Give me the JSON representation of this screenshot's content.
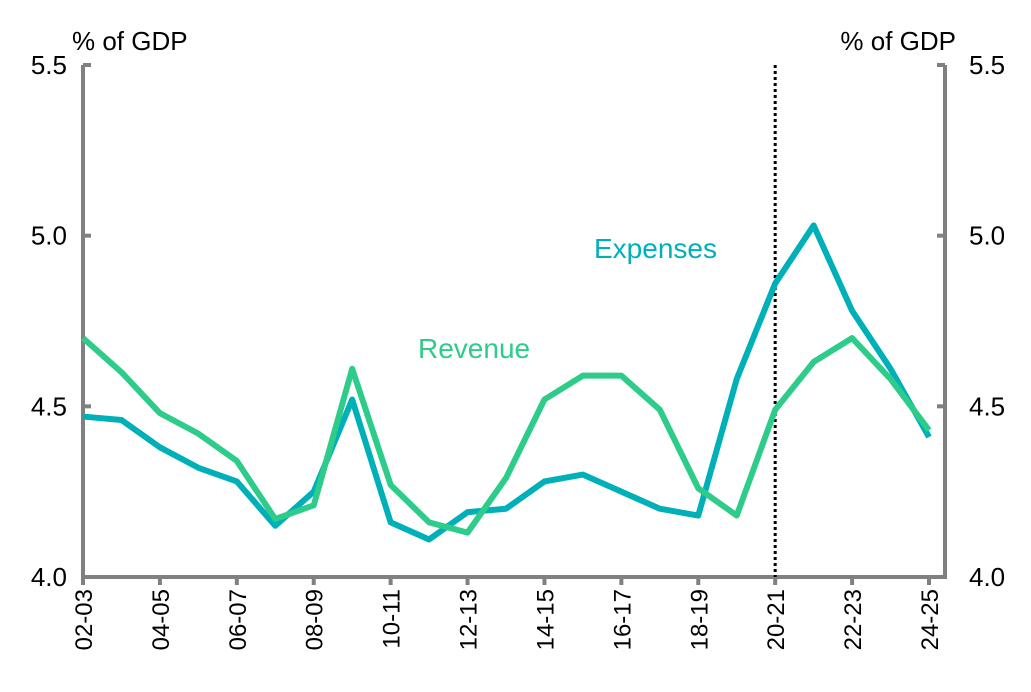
{
  "chart_data": {
    "type": "line",
    "title": "",
    "ylabel_left": "% of GDP",
    "ylabel_right": "% of GDP",
    "ylim": [
      4.0,
      5.5
    ],
    "yticks": [
      "4.0",
      "4.5",
      "5.0",
      "5.5"
    ],
    "categories": [
      "02-03",
      "03-04",
      "04-05",
      "05-06",
      "06-07",
      "07-08",
      "08-09",
      "09-10",
      "10-11",
      "11-12",
      "12-13",
      "13-14",
      "14-15",
      "15-16",
      "16-17",
      "17-18",
      "18-19",
      "19-20",
      "20-21",
      "21-22",
      "22-23",
      "23-24",
      "24-25"
    ],
    "xtick_labels": [
      "02-03",
      "04-05",
      "06-07",
      "08-09",
      "10-11",
      "12-13",
      "14-15",
      "16-17",
      "18-19",
      "20-21",
      "22-23",
      "24-25"
    ],
    "vertical_marker": "20-21",
    "grid": false,
    "series": [
      {
        "name": "Expenses",
        "color": "#00B0B9",
        "values": [
          4.47,
          4.46,
          4.38,
          4.32,
          4.28,
          4.15,
          4.25,
          4.52,
          4.16,
          4.11,
          4.19,
          4.2,
          4.28,
          4.3,
          4.25,
          4.2,
          4.18,
          4.58,
          4.86,
          5.03,
          4.78,
          4.61,
          4.41
        ]
      },
      {
        "name": "Revenue",
        "color": "#2ECC8A",
        "values": [
          4.7,
          4.6,
          4.48,
          4.42,
          4.34,
          4.17,
          4.21,
          4.61,
          4.27,
          4.16,
          4.13,
          4.29,
          4.52,
          4.59,
          4.59,
          4.49,
          4.26,
          4.18,
          4.49,
          4.63,
          4.7,
          4.58,
          4.43
        ]
      }
    ]
  }
}
